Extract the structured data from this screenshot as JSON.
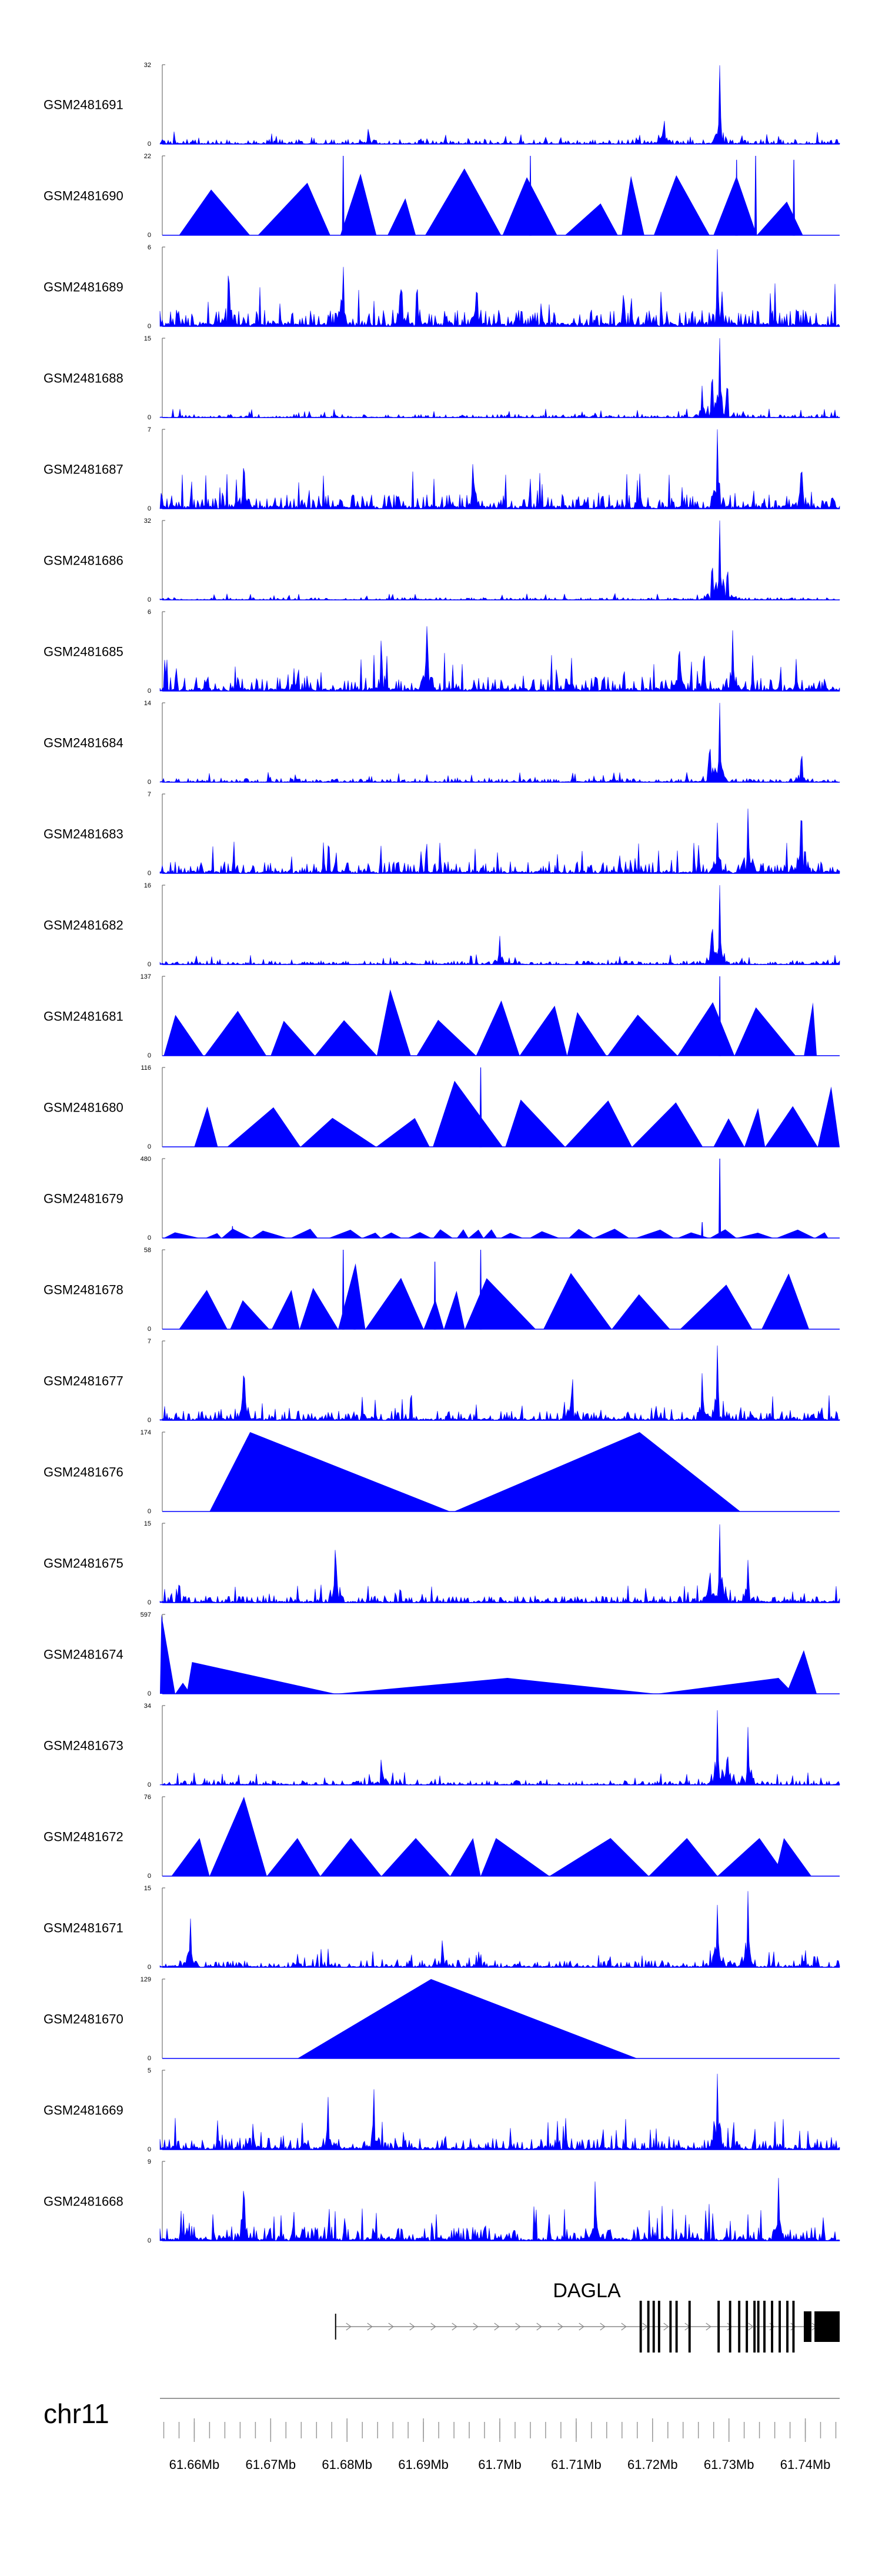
{
  "chart_data": {
    "type": "area",
    "track_color": "#0000ff",
    "chromosome": "chr11",
    "gene": "DAGLA",
    "x_range": [
      61.6555,
      61.7445
    ],
    "x_unit": "Mb",
    "x_ticks": [
      {
        "value": 61.66,
        "label": "61.66Mb"
      },
      {
        "value": 61.67,
        "label": "61.67Mb"
      },
      {
        "value": 61.68,
        "label": "61.68Mb"
      },
      {
        "value": 61.69,
        "label": "61.69Mb"
      },
      {
        "value": 61.7,
        "label": "61.7Mb"
      },
      {
        "value": 61.71,
        "label": "61.71Mb"
      },
      {
        "value": 61.72,
        "label": "61.72Mb"
      },
      {
        "value": 61.73,
        "label": "61.73Mb"
      },
      {
        "value": 61.74,
        "label": "61.74Mb"
      }
    ],
    "tracks": [
      {
        "name": "GSM2481691",
        "ymax": 32,
        "pattern": "noisy",
        "base": 0.1,
        "seed": 91,
        "peaks": [
          [
            61.7288,
            1.0
          ],
          [
            61.7215,
            0.35
          ],
          [
            61.6828,
            0.2
          ]
        ]
      },
      {
        "name": "GSM2481690",
        "ymax": 22,
        "pattern": "triangles",
        "seed": 90,
        "start": 61.658,
        "end": 61.7405,
        "spikes": [
          [
            61.6795,
            1.0
          ],
          [
            61.704,
            1.0
          ],
          [
            61.7335,
            1.0
          ],
          [
            61.731,
            0.95
          ],
          [
            61.7385,
            0.95
          ]
        ]
      },
      {
        "name": "GSM2481689",
        "ymax": 6,
        "pattern": "noisy",
        "base": 0.35,
        "seed": 89,
        "peaks": [
          [
            61.7285,
            1.0
          ],
          [
            61.6645,
            0.9
          ],
          [
            61.6795,
            0.8
          ],
          [
            61.687,
            0.65
          ],
          [
            61.697,
            0.6
          ]
        ]
      },
      {
        "name": "GSM2481688",
        "ymax": 15,
        "pattern": "noisy",
        "base": 0.07,
        "seed": 88,
        "peaks": [
          [
            61.7288,
            1.0
          ],
          [
            61.7278,
            0.7
          ],
          [
            61.7298,
            0.55
          ],
          [
            61.7265,
            0.35
          ]
        ]
      },
      {
        "name": "GSM2481687",
        "ymax": 7,
        "pattern": "noisy",
        "base": 0.3,
        "seed": 87,
        "peaks": [
          [
            61.7285,
            1.0
          ],
          [
            61.6665,
            0.75
          ],
          [
            61.6965,
            0.7
          ],
          [
            61.7395,
            0.7
          ]
        ]
      },
      {
        "name": "GSM2481686",
        "ymax": 32,
        "pattern": "noisy",
        "base": 0.05,
        "seed": 86,
        "peaks": [
          [
            61.7288,
            1.0
          ],
          [
            61.7278,
            0.6
          ],
          [
            61.7298,
            0.45
          ]
        ]
      },
      {
        "name": "GSM2481685",
        "ymax": 6,
        "pattern": "noisy",
        "base": 0.3,
        "seed": 85,
        "peaks": [
          [
            61.6905,
            1.0
          ],
          [
            61.6845,
            0.75
          ],
          [
            61.7235,
            0.7
          ],
          [
            61.7305,
            0.75
          ]
        ]
      },
      {
        "name": "GSM2481684",
        "ymax": 14,
        "pattern": "noisy",
        "base": 0.08,
        "seed": 84,
        "peaks": [
          [
            61.7288,
            1.0
          ],
          [
            61.7275,
            0.6
          ],
          [
            61.7395,
            0.4
          ]
        ]
      },
      {
        "name": "GSM2481683",
        "ymax": 7,
        "pattern": "noisy",
        "base": 0.25,
        "seed": 83,
        "peaks": [
          [
            61.7395,
            1.0
          ],
          [
            61.7325,
            0.85
          ],
          [
            61.7285,
            0.6
          ]
        ]
      },
      {
        "name": "GSM2481682",
        "ymax": 16,
        "pattern": "noisy",
        "base": 0.08,
        "seed": 82,
        "peaks": [
          [
            61.7288,
            1.0
          ],
          [
            61.7278,
            0.6
          ],
          [
            61.7,
            0.3
          ]
        ]
      },
      {
        "name": "GSM2481681",
        "ymax": 137,
        "pattern": "triangles",
        "seed": 81,
        "start": 61.656,
        "end": 61.7415,
        "spikes": [
          [
            61.7288,
            1.0
          ]
        ]
      },
      {
        "name": "GSM2481680",
        "ymax": 116,
        "pattern": "triangles",
        "seed": 80,
        "start": 61.66,
        "end": 61.7445,
        "spikes": [
          [
            61.6975,
            1.0
          ]
        ]
      },
      {
        "name": "GSM2481679",
        "ymax": 480,
        "pattern": "triangles_low",
        "seed": 79,
        "start": 61.656,
        "end": 61.743,
        "spikes": [
          [
            61.7288,
            1.0
          ],
          [
            61.7265,
            0.2
          ],
          [
            61.665,
            0.15
          ]
        ]
      },
      {
        "name": "GSM2481678",
        "ymax": 58,
        "pattern": "triangles",
        "seed": 78,
        "start": 61.658,
        "end": 61.7405,
        "spikes": [
          [
            61.6795,
            1.0
          ],
          [
            61.6975,
            1.0
          ],
          [
            61.6915,
            0.85
          ],
          [
            61.681,
            0.75
          ]
        ]
      },
      {
        "name": "GSM2481677",
        "ymax": 7,
        "pattern": "noisy",
        "base": 0.2,
        "seed": 77,
        "peaks": [
          [
            61.7285,
            1.0
          ],
          [
            61.6665,
            0.8
          ],
          [
            61.7095,
            0.6
          ],
          [
            61.7265,
            0.6
          ]
        ]
      },
      {
        "name": "GSM2481676",
        "ymax": 174,
        "pattern": "fixed_triangles",
        "seed": 76,
        "tris": [
          [
            61.662,
            61.6673,
            61.6935
          ],
          [
            61.694,
            61.7183,
            61.7315
          ]
        ]
      },
      {
        "name": "GSM2481675",
        "ymax": 15,
        "pattern": "noisy",
        "base": 0.15,
        "seed": 75,
        "peaks": [
          [
            61.7288,
            1.0
          ],
          [
            61.6785,
            0.85
          ],
          [
            61.7325,
            0.55
          ],
          [
            61.7275,
            0.5
          ]
        ]
      },
      {
        "name": "GSM2481674",
        "ymax": 597,
        "pattern": "fixed_triangles",
        "seed": 74,
        "tris": [
          [
            61.6555,
            61.6557,
            61.6575
          ],
          [
            61.6575,
            61.6585,
            61.6595
          ],
          [
            61.659,
            61.6597,
            61.6785
          ],
          [
            61.6785,
            61.701,
            61.7205
          ],
          [
            61.7205,
            61.7365,
            61.7385
          ],
          [
            61.7375,
            61.7398,
            61.7415
          ]
        ],
        "heights": [
          1.0,
          0.14,
          0.4,
          0.2,
          0.2,
          0.55
        ]
      },
      {
        "name": "GSM2481673",
        "ymax": 34,
        "pattern": "noisy",
        "base": 0.1,
        "seed": 73,
        "peaks": [
          [
            61.7285,
            1.0
          ],
          [
            61.7325,
            0.75
          ],
          [
            61.7298,
            0.5
          ],
          [
            61.6845,
            0.35
          ]
        ]
      },
      {
        "name": "GSM2481672",
        "ymax": 76,
        "pattern": "fixed_triangles",
        "seed": 72,
        "tris": [
          [
            61.657,
            61.6607,
            61.662
          ],
          [
            61.662,
            61.6665,
            61.6695
          ],
          [
            61.6695,
            61.6735,
            61.6765
          ],
          [
            61.6765,
            61.6805,
            61.6845
          ],
          [
            61.6845,
            61.689,
            61.6935
          ],
          [
            61.6935,
            61.6965,
            61.6975
          ],
          [
            61.6975,
            61.6995,
            61.7065
          ],
          [
            61.7065,
            61.7145,
            61.7195
          ],
          [
            61.7195,
            61.7245,
            61.7285
          ],
          [
            61.7285,
            61.734,
            61.7375
          ],
          [
            61.736,
            61.7372,
            61.7408
          ]
        ],
        "heights": [
          0.48,
          1.0,
          0.48,
          0.48,
          0.48,
          0.48,
          0.48,
          0.48,
          0.48,
          0.48,
          0.48
        ]
      },
      {
        "name": "GSM2481671",
        "ymax": 15,
        "pattern": "noisy",
        "base": 0.15,
        "seed": 71,
        "peaks": [
          [
            61.7325,
            1.0
          ],
          [
            61.7285,
            0.8
          ],
          [
            61.6595,
            0.55
          ],
          [
            61.6925,
            0.4
          ]
        ]
      },
      {
        "name": "GSM2481670",
        "ymax": 129,
        "pattern": "fixed_triangles",
        "seed": 70,
        "tris": [
          [
            61.6735,
            61.691,
            61.718
          ]
        ],
        "heights": [
          1.0
        ]
      },
      {
        "name": "GSM2481669",
        "ymax": 5,
        "pattern": "noisy",
        "base": 0.25,
        "seed": 69,
        "peaks": [
          [
            61.7285,
            1.0
          ],
          [
            61.6835,
            0.85
          ],
          [
            61.6775,
            0.65
          ]
        ]
      },
      {
        "name": "GSM2481668",
        "ymax": 9,
        "pattern": "noisy",
        "base": 0.3,
        "seed": 68,
        "peaks": [
          [
            61.6665,
            0.9
          ],
          [
            61.7125,
            0.85
          ],
          [
            61.7365,
            0.8
          ]
        ]
      }
    ],
    "gene_model": {
      "tx_start": 61.6785,
      "tx_end": 61.7445,
      "exons": [
        [
          61.7183,
          61.7186
        ],
        [
          61.7193,
          61.7196
        ],
        [
          61.72,
          61.7203
        ],
        [
          61.7207,
          61.721
        ],
        [
          61.7222,
          61.7225
        ],
        [
          61.723,
          61.7233
        ],
        [
          61.7247,
          61.725
        ],
        [
          61.7285,
          61.7288
        ],
        [
          61.73,
          61.7303
        ],
        [
          61.7312,
          61.7315
        ],
        [
          61.7322,
          61.7325
        ],
        [
          61.7332,
          61.7335
        ],
        [
          61.7337,
          61.734
        ],
        [
          61.7345,
          61.7348
        ],
        [
          61.7355,
          61.7358
        ],
        [
          61.7365,
          61.7368
        ],
        [
          61.7375,
          61.7378
        ],
        [
          61.7383,
          61.7386
        ],
        [
          61.7398,
          61.7408
        ],
        [
          61.7412,
          61.7445
        ]
      ]
    }
  }
}
